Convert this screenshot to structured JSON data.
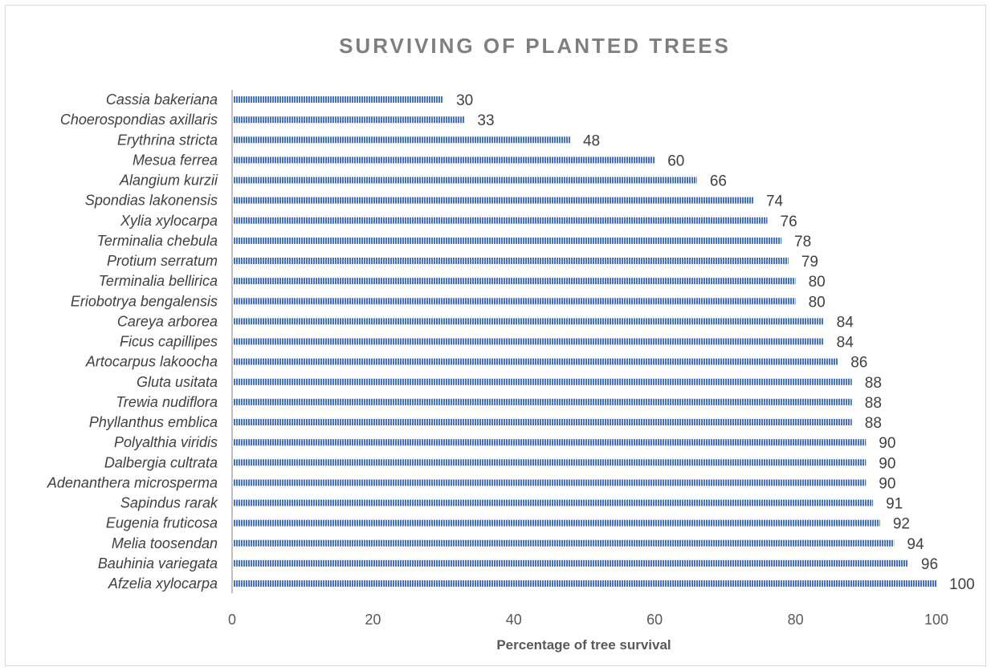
{
  "chart_data": {
    "type": "bar",
    "orientation": "horizontal",
    "title": "SURVIVING OF PLANTED TREES",
    "xlabel": "Percentage of tree survival",
    "ylabel": "",
    "xlim": [
      0,
      100
    ],
    "x_ticks": [
      0,
      20,
      40,
      60,
      80,
      100
    ],
    "grid": false,
    "legend": "none",
    "bar_color": "#4472c4",
    "categories": [
      "Cassia bakeriana",
      "Choerospondias axillaris",
      "Erythrina stricta",
      "Mesua ferrea",
      "Alangium kurzii",
      "Spondias lakonensis",
      "Xylia xylocarpa",
      "Terminalia chebula",
      "Protium serratum",
      "Terminalia bellirica",
      "Eriobotrya bengalensis",
      "Careya arborea",
      "Ficus capillipes",
      "Artocarpus lakoocha",
      "Gluta usitata",
      "Trewia nudiflora",
      "Phyllanthus emblica",
      "Polyalthia viridis",
      "Dalbergia cultrata",
      "Adenanthera microsperma",
      "Sapindus rarak",
      "Eugenia fruticosa",
      "Melia toosendan",
      "Bauhinia variegata",
      "Afzelia xylocarpa"
    ],
    "values": [
      30,
      33,
      48,
      60,
      66,
      74,
      76,
      78,
      79,
      80,
      80,
      84,
      84,
      86,
      88,
      88,
      88,
      90,
      90,
      90,
      91,
      92,
      94,
      96,
      100
    ]
  }
}
